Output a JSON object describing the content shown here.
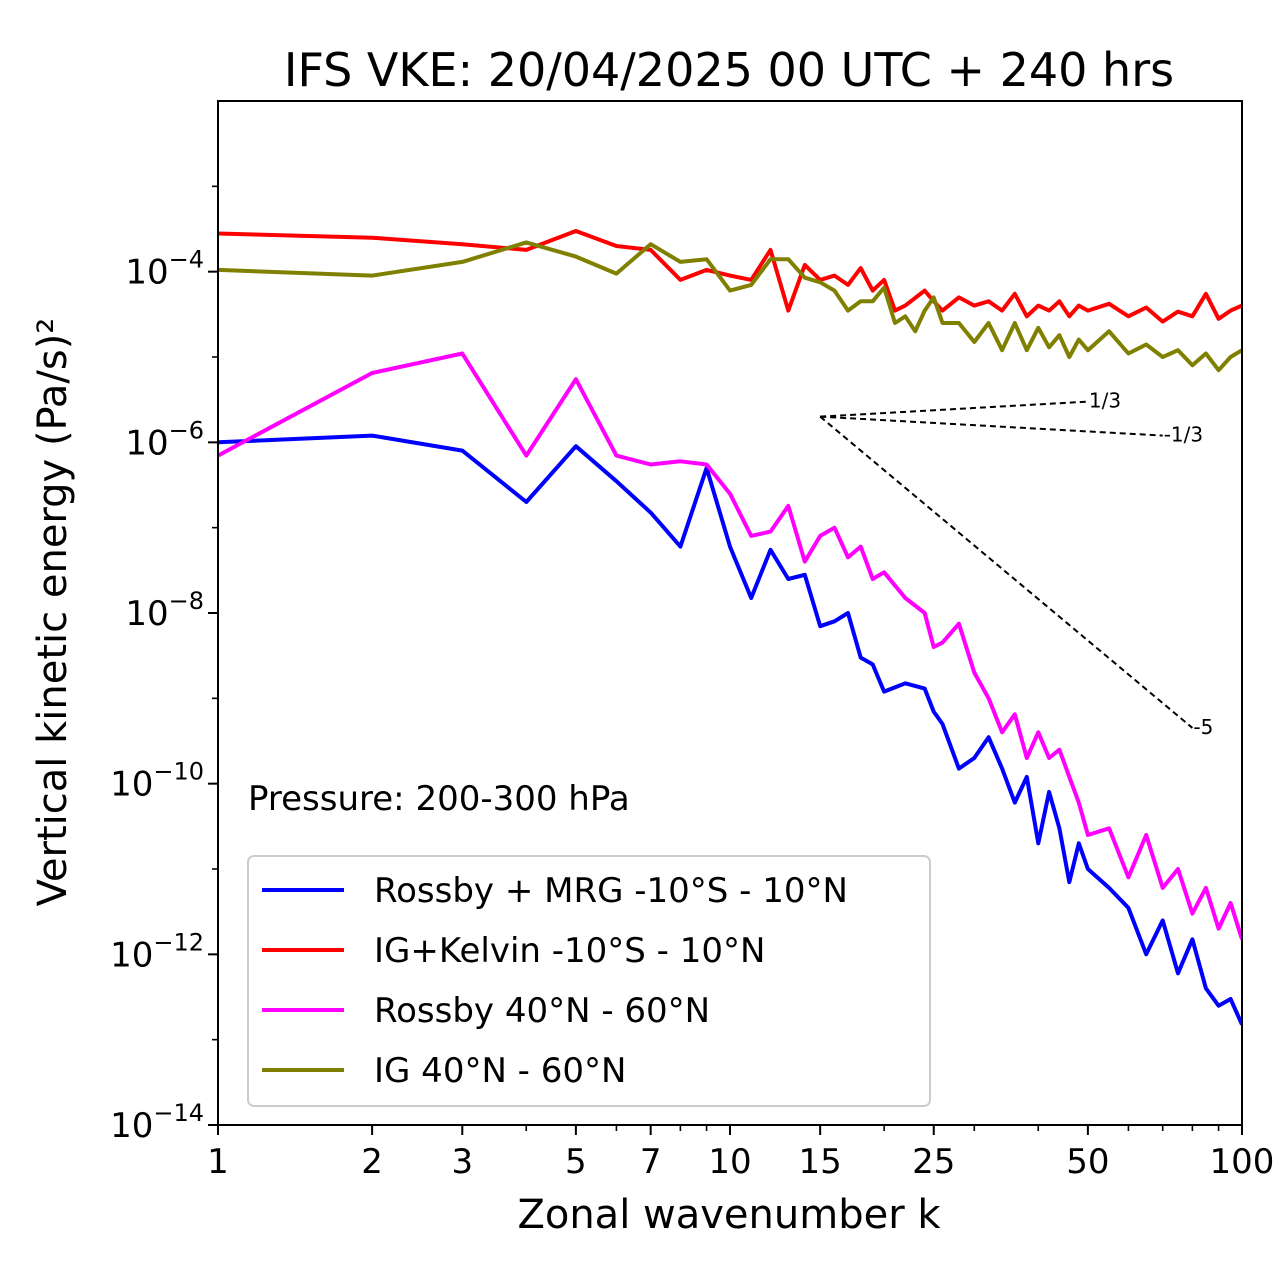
{
  "chart_data": {
    "type": "line",
    "title": "IFS VKE: 20/04/2025 00 UTC + 240 hrs",
    "xlabel": "Zonal wavenumber k",
    "ylabel": "Vertical kinetic energy (Pa/s)²",
    "xscale": "log",
    "yscale": "log",
    "xlim": [
      1,
      100
    ],
    "ylim": [
      1e-14,
      0.01
    ],
    "xticks": [
      {
        "value": 1,
        "label": "1"
      },
      {
        "value": 2,
        "label": "2"
      },
      {
        "value": 3,
        "label": "3"
      },
      {
        "value": 5,
        "label": "5"
      },
      {
        "value": 7,
        "label": "7"
      },
      {
        "value": 10,
        "label": "10"
      },
      {
        "value": 15,
        "label": "15"
      },
      {
        "value": 25,
        "label": "25"
      },
      {
        "value": 50,
        "label": "50"
      },
      {
        "value": 100,
        "label": "100"
      }
    ],
    "yticks": [
      {
        "value": 0.0001,
        "base": "10",
        "exp": "−4"
      },
      {
        "value": 1e-06,
        "base": "10",
        "exp": "−6"
      },
      {
        "value": 1e-08,
        "base": "10",
        "exp": "−8"
      },
      {
        "value": 1e-10,
        "base": "10",
        "exp": "−10"
      },
      {
        "value": 1e-12,
        "base": "10",
        "exp": "−12"
      },
      {
        "value": 1e-14,
        "base": "10",
        "exp": "−14"
      }
    ],
    "annotation": "Pressure: 200-300 hPa",
    "legend_position": "lower-left",
    "reference_lines": [
      {
        "label": "1/3",
        "x": [
          15,
          50
        ],
        "y": [
          2e-06,
          3e-06
        ]
      },
      {
        "label": "-1/3",
        "x": [
          15,
          70
        ],
        "y": [
          2e-06,
          1.2e-06
        ]
      },
      {
        "label": "-5",
        "x": [
          15,
          80
        ],
        "y": [
          2e-06,
          4.5e-10
        ]
      }
    ],
    "series": [
      {
        "name": "Rossby + MRG -10°S - 10°N",
        "color": "#0000ff",
        "x": [
          1,
          2,
          3,
          4,
          5,
          6,
          7,
          8,
          9,
          10,
          11,
          12,
          13,
          14,
          15,
          16,
          17,
          18,
          19,
          20,
          22,
          24,
          25,
          26,
          28,
          30,
          32,
          34,
          36,
          38,
          40,
          42,
          44,
          46,
          48,
          50,
          55,
          60,
          65,
          70,
          75,
          80,
          85,
          90,
          95,
          100
        ],
        "y": [
          1e-06,
          1.2e-06,
          8e-07,
          2e-07,
          9e-07,
          3.5e-07,
          1.5e-07,
          6e-08,
          5e-07,
          6e-08,
          1.5e-08,
          5.5e-08,
          2.5e-08,
          2.8e-08,
          7e-09,
          8e-09,
          1e-08,
          3e-09,
          2.5e-09,
          1.2e-09,
          1.5e-09,
          1.3e-09,
          7e-10,
          5e-10,
          1.5e-10,
          2e-10,
          3.5e-10,
          1.5e-10,
          6e-11,
          1.2e-10,
          2e-11,
          8e-11,
          3e-11,
          7e-12,
          2e-11,
          1e-11,
          6e-12,
          3.5e-12,
          1e-12,
          2.5e-12,
          6e-13,
          1.5e-12,
          4e-13,
          2.5e-13,
          3e-13,
          1.5e-13
        ]
      },
      {
        "name": "IG+Kelvin -10°S - 10°N",
        "color": "#ff0000",
        "x": [
          1,
          2,
          3,
          4,
          5,
          6,
          7,
          8,
          9,
          10,
          11,
          12,
          13,
          14,
          15,
          16,
          17,
          18,
          19,
          20,
          21,
          22,
          24,
          25,
          26,
          28,
          30,
          32,
          34,
          36,
          38,
          40,
          42,
          44,
          46,
          48,
          50,
          55,
          60,
          65,
          70,
          75,
          80,
          85,
          90,
          95,
          100
        ],
        "y": [
          0.00028,
          0.00025,
          0.00021,
          0.00018,
          0.0003,
          0.0002,
          0.00018,
          8e-05,
          0.000105,
          9e-05,
          8e-05,
          0.00018,
          3.5e-05,
          0.00012,
          8e-05,
          9e-05,
          7e-05,
          0.00011,
          6e-05,
          8e-05,
          3.5e-05,
          4e-05,
          6e-05,
          4.5e-05,
          3.5e-05,
          5e-05,
          4e-05,
          4.5e-05,
          3.5e-05,
          5.5e-05,
          3e-05,
          4e-05,
          3.5e-05,
          4.5e-05,
          3e-05,
          4e-05,
          3.5e-05,
          4.2e-05,
          3e-05,
          3.8e-05,
          2.6e-05,
          3.4e-05,
          3e-05,
          5.5e-05,
          2.8e-05,
          3.5e-05,
          4e-05
        ]
      },
      {
        "name": "Rossby 40°N - 60°N",
        "color": "#ff00ff",
        "x": [
          1,
          2,
          3,
          4,
          5,
          6,
          7,
          8,
          9,
          10,
          11,
          12,
          13,
          14,
          15,
          16,
          17,
          18,
          19,
          20,
          22,
          24,
          25,
          26,
          28,
          30,
          32,
          34,
          36,
          38,
          40,
          42,
          44,
          46,
          48,
          50,
          55,
          60,
          65,
          70,
          75,
          80,
          85,
          90,
          95,
          100
        ],
        "y": [
          7e-07,
          6.5e-06,
          1.1e-05,
          7e-07,
          5.5e-06,
          7e-07,
          5.5e-07,
          6e-07,
          5.5e-07,
          2.5e-07,
          8e-08,
          9e-08,
          1.8e-07,
          4e-08,
          8e-08,
          1e-07,
          4.5e-08,
          6e-08,
          2.5e-08,
          3e-08,
          1.5e-08,
          1e-08,
          4e-09,
          4.5e-09,
          7.5e-09,
          2e-09,
          1e-09,
          4e-10,
          6.5e-10,
          2e-10,
          4e-10,
          2e-10,
          2.5e-10,
          1.2e-10,
          6e-11,
          2.5e-11,
          3e-11,
          8e-12,
          2.5e-11,
          6e-12,
          1e-11,
          3e-12,
          6e-12,
          2e-12,
          4e-12,
          1.5e-12
        ]
      },
      {
        "name": "IG 40°N - 60°N",
        "color": "#808000",
        "x": [
          1,
          2,
          3,
          4,
          5,
          6,
          7,
          8,
          9,
          10,
          11,
          12,
          13,
          14,
          15,
          16,
          17,
          18,
          19,
          20,
          21,
          22,
          23,
          24,
          25,
          26,
          28,
          30,
          32,
          34,
          36,
          38,
          40,
          42,
          44,
          46,
          48,
          50,
          55,
          60,
          65,
          70,
          75,
          80,
          85,
          90,
          95,
          100
        ],
        "y": [
          0.000105,
          9e-05,
          0.00013,
          0.00022,
          0.00015,
          9.5e-05,
          0.00021,
          0.00013,
          0.00014,
          6e-05,
          7e-05,
          0.00014,
          0.00014,
          8.5e-05,
          7.5e-05,
          6e-05,
          3.5e-05,
          4.5e-05,
          4.5e-05,
          6.5e-05,
          2.5e-05,
          3e-05,
          2e-05,
          3.5e-05,
          5e-05,
          2.5e-05,
          2.5e-05,
          1.5e-05,
          2.5e-05,
          1.2e-05,
          2.5e-05,
          1.2e-05,
          2.2e-05,
          1.3e-05,
          1.8e-05,
          1e-05,
          1.6e-05,
          1.2e-05,
          2e-05,
          1.1e-05,
          1.4e-05,
          1e-05,
          1.2e-05,
          8e-06,
          1.1e-05,
          7e-06,
          1e-05,
          1.2e-05
        ]
      }
    ]
  }
}
